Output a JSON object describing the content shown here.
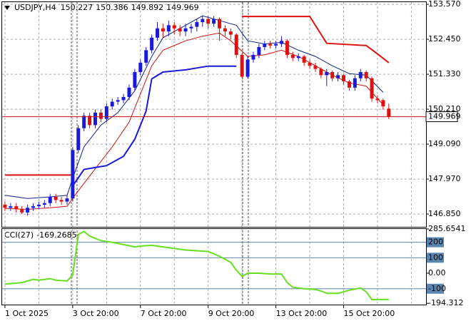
{
  "chart_data": [
    {
      "type": "candlestick",
      "title": "USDJPY,H4",
      "up_color": "#1a1ad8",
      "down_color": "#e01010",
      "price_line_color": "#d01010",
      "xlim": [
        -0.5,
        74.6
      ],
      "ylim": [
        146.44,
        153.64
      ],
      "grid": true,
      "xticks": [
        {
          "value": 0,
          "label": "1 Oct 2025"
        },
        {
          "value": 12,
          "label": "3 Oct 20:00"
        },
        {
          "value": 24,
          "label": "7 Oct 20:00"
        },
        {
          "value": 36,
          "label": "9 Oct 20:00"
        },
        {
          "value": 48,
          "label": "13 Oct 20:00"
        },
        {
          "value": 60,
          "label": "15 Oct 20:00"
        }
      ],
      "yticks": [
        {
          "value": 153.57,
          "label": "153.570"
        },
        {
          "value": 152.45,
          "label": "152.450"
        },
        {
          "value": 151.33,
          "label": "151.330"
        },
        {
          "value": 150.21,
          "label": "150.210"
        },
        {
          "value": 149.09,
          "label": "149.090"
        },
        {
          "value": 147.97,
          "label": "147.970"
        },
        {
          "value": 146.85,
          "label": "146.850"
        }
      ],
      "open": [
        147.15,
        147.05,
        147.1,
        147.0,
        146.9,
        147.05,
        147.1,
        147.15,
        147.2,
        147.4,
        147.3,
        147.25,
        147.35,
        148.9,
        149.6,
        150.0,
        149.7,
        150.1,
        149.9,
        150.3,
        150.45,
        150.5,
        150.6,
        150.9,
        151.4,
        151.7,
        152.1,
        152.5,
        152.8,
        152.7,
        152.9,
        152.8,
        152.7,
        152.8,
        152.85,
        153.0,
        153.1,
        152.95,
        153.1,
        152.8,
        152.7,
        152.6,
        151.95,
        151.25,
        151.8,
        151.95,
        152.2,
        152.3,
        152.25,
        152.3,
        152.4,
        151.95,
        151.85,
        151.9,
        151.7,
        151.6,
        151.5,
        151.3,
        151.4,
        151.2,
        151.3,
        151.1,
        150.9,
        151.2,
        151.4,
        151.2,
        150.55,
        150.5,
        150.227
      ],
      "high": [
        147.25,
        147.2,
        147.2,
        147.1,
        147.15,
        147.2,
        147.25,
        147.3,
        147.5,
        147.5,
        147.4,
        147.45,
        149.0,
        149.7,
        150.1,
        150.1,
        150.2,
        150.2,
        150.4,
        150.55,
        150.6,
        150.7,
        151.0,
        151.5,
        151.8,
        152.2,
        152.6,
        153.0,
        152.95,
        153.05,
        153.0,
        152.9,
        152.95,
        152.95,
        153.1,
        153.2,
        153.2,
        153.2,
        153.15,
        152.9,
        152.8,
        152.65,
        152.0,
        151.9,
        152.05,
        152.3,
        152.4,
        152.4,
        152.4,
        152.55,
        152.45,
        152.05,
        152.0,
        151.95,
        151.8,
        151.7,
        151.55,
        151.5,
        151.45,
        151.4,
        151.35,
        151.15,
        151.3,
        151.5,
        151.45,
        151.25,
        150.65,
        150.55,
        150.386
      ],
      "low": [
        146.95,
        146.95,
        146.9,
        146.85,
        146.8,
        146.95,
        147.0,
        147.05,
        147.1,
        147.2,
        147.15,
        147.15,
        147.25,
        148.8,
        149.5,
        149.6,
        149.6,
        149.8,
        149.8,
        150.2,
        150.35,
        150.4,
        150.5,
        150.8,
        151.3,
        151.6,
        152.0,
        152.4,
        152.5,
        152.55,
        152.6,
        152.55,
        152.55,
        152.65,
        152.7,
        152.85,
        152.8,
        152.85,
        152.4,
        152.55,
        152.45,
        151.85,
        151.2,
        151.2,
        151.7,
        151.85,
        152.1,
        152.15,
        152.15,
        152.2,
        151.85,
        151.75,
        151.75,
        151.6,
        151.5,
        151.4,
        151.2,
        150.95,
        151.1,
        151.1,
        151.0,
        150.8,
        150.8,
        151.1,
        151.1,
        150.45,
        150.4,
        150.2,
        149.892
      ],
      "close": [
        147.05,
        147.1,
        147.0,
        146.9,
        147.05,
        147.1,
        147.15,
        147.2,
        147.4,
        147.3,
        147.25,
        147.35,
        148.9,
        149.6,
        150.0,
        149.7,
        150.1,
        149.9,
        150.3,
        150.45,
        150.5,
        150.6,
        150.9,
        151.4,
        151.7,
        152.1,
        152.5,
        152.8,
        152.7,
        152.9,
        152.8,
        152.7,
        152.8,
        152.85,
        153.0,
        153.1,
        152.95,
        153.1,
        152.8,
        152.7,
        152.6,
        151.95,
        151.25,
        151.8,
        151.95,
        152.2,
        152.3,
        152.25,
        152.3,
        152.4,
        151.95,
        151.85,
        151.9,
        151.7,
        151.6,
        151.5,
        151.3,
        151.4,
        151.2,
        151.3,
        151.1,
        150.9,
        151.2,
        151.4,
        151.2,
        150.55,
        150.5,
        150.3,
        149.969
      ],
      "series": [
        {
          "color": "#10208a",
          "width": 1,
          "x": [
            0,
            4,
            8,
            11,
            12,
            14,
            17,
            20,
            23,
            26,
            28,
            32,
            35,
            38,
            41,
            43,
            46,
            49,
            52,
            55,
            58,
            61,
            64,
            67
          ],
          "values": [
            147.45,
            147.35,
            147.4,
            147.45,
            148.0,
            149.0,
            149.7,
            150.1,
            150.8,
            151.9,
            152.5,
            152.9,
            153.2,
            153.05,
            152.9,
            152.4,
            152.3,
            152.35,
            152.1,
            151.9,
            151.6,
            151.35,
            151.3,
            150.75
          ]
        },
        {
          "color": "#d01010",
          "width": 1,
          "x": [
            0,
            4,
            8,
            11,
            13,
            16,
            19,
            22,
            24,
            26,
            28,
            32,
            35,
            38,
            40,
            43,
            46,
            49,
            52,
            55,
            58,
            61,
            64,
            67
          ],
          "values": [
            147.03,
            147.0,
            147.05,
            147.1,
            147.6,
            148.3,
            149.0,
            149.8,
            150.7,
            151.6,
            152.1,
            152.4,
            152.55,
            152.65,
            152.4,
            151.9,
            151.95,
            152.1,
            151.9,
            151.6,
            151.3,
            151.05,
            150.95,
            150.35
          ]
        },
        {
          "color": "#1a1ad8",
          "width": 2,
          "x": [
            12,
            14,
            18,
            21,
            23,
            25,
            26,
            28,
            32,
            36,
            41
          ],
          "values": [
            147.75,
            148.28,
            148.4,
            148.7,
            149.25,
            150.15,
            151.18,
            151.4,
            151.47,
            151.59,
            151.59
          ]
        },
        {
          "color": "#e01010",
          "width": 2,
          "x": [
            0,
            12,
            27,
            42,
            54,
            57,
            64,
            66,
            68
          ],
          "values": [
            148.1,
            148.1,
            null,
            153.18,
            153.18,
            152.32,
            152.25,
            151.98,
            151.7
          ]
        }
      ]
    },
    {
      "type": "line",
      "title": "CCI(27)",
      "color": "#66e020",
      "level_color": "#5a86b0",
      "xlim": [
        -0.5,
        74.6
      ],
      "ylim": [
        -207,
        285.6541
      ],
      "yticks": [
        285.6541,
        200,
        100,
        {
          "value": 0,
          "label": "0.00"
        },
        -100,
        -194.312
      ],
      "levels": [
        200,
        100,
        -100
      ],
      "x": [
        0,
        3,
        5,
        6,
        8,
        9,
        11,
        12,
        13,
        14,
        15,
        17,
        19,
        21,
        23,
        24,
        26,
        28,
        30,
        32,
        34,
        36,
        38,
        40,
        41,
        42,
        43,
        45,
        47,
        49,
        50,
        51,
        53,
        55,
        56,
        57,
        59,
        61,
        63,
        64,
        65,
        68
      ],
      "values": [
        -70,
        -60,
        -40,
        -45,
        -35,
        -45,
        -50,
        -10,
        250,
        270,
        240,
        210,
        200,
        185,
        170,
        175,
        180,
        170,
        160,
        150,
        145,
        140,
        110,
        70,
        20,
        -20,
        0,
        0,
        -5,
        -5,
        -60,
        -90,
        -100,
        -105,
        -115,
        -130,
        -130,
        -110,
        -95,
        -120,
        -170,
        -169.2685
      ]
    }
  ]
}
